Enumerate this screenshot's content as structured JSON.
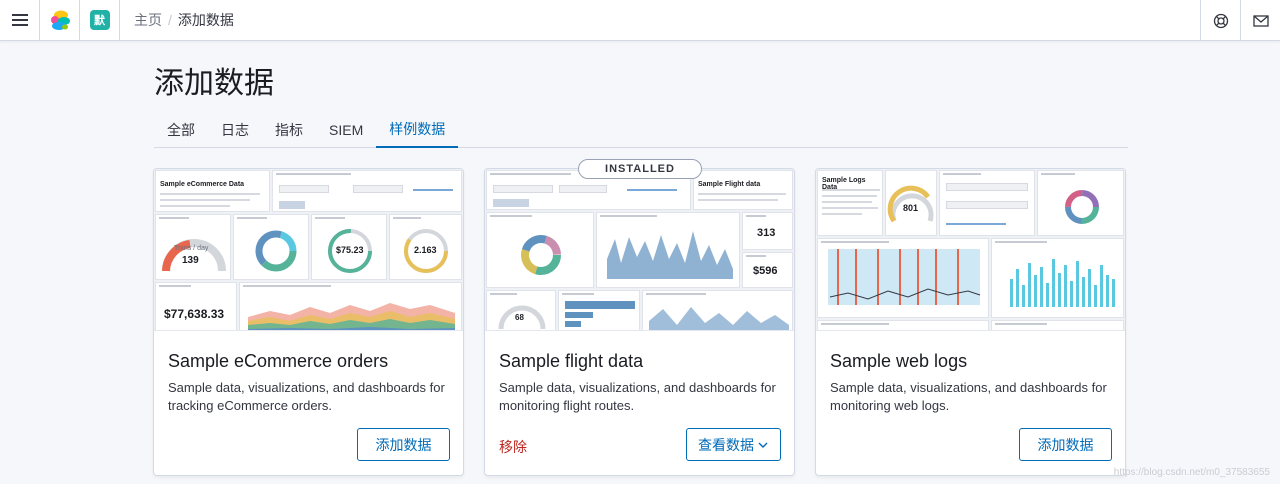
{
  "header": {
    "space_initial": "默",
    "breadcrumb_home": "主页",
    "breadcrumb_separator": "/",
    "breadcrumb_current": "添加数据"
  },
  "page": {
    "title": "添加数据",
    "tabs": [
      {
        "label": "全部",
        "active": false
      },
      {
        "label": "日志",
        "active": false
      },
      {
        "label": "指标",
        "active": false
      },
      {
        "label": "SIEM",
        "active": false
      },
      {
        "label": "样例数据",
        "active": true
      }
    ]
  },
  "cards": [
    {
      "title": "Sample eCommerce orders",
      "description": "Sample data, visualizations, and dashboards for tracking eCommerce orders.",
      "action_label": "添加数据",
      "preview": {
        "heading": "Sample eCommerce Data",
        "gauge_label": "Trxns / day",
        "gauge_value": "139",
        "avg_sales": "$75.23",
        "avg_items": "2.163",
        "total_revenue": "$77,638.33"
      }
    },
    {
      "title": "Sample flight data",
      "description": "Sample data, visualizations, and dashboards for monitoring flight routes.",
      "status_badge": "INSTALLED",
      "remove_label": "移除",
      "action_label": "查看数据",
      "preview": {
        "heading": "Sample Flight data",
        "total_flights": "313",
        "avg_ticket": "$596",
        "delays_value": "68"
      }
    },
    {
      "title": "Sample web logs",
      "description": "Sample data, visualizations, and dashboards for monitoring web logs.",
      "action_label": "添加数据",
      "preview": {
        "heading": "Sample Logs Data",
        "unique_visitors": "801"
      }
    }
  ],
  "watermark": "https://blog.csdn.net/m0_37583655",
  "colors": {
    "accent": "#006bb8",
    "danger": "#bd271e"
  }
}
